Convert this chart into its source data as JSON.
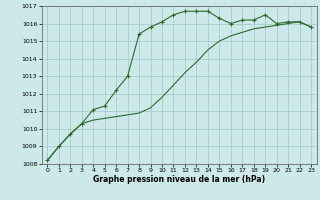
{
  "line1_x": [
    0,
    1,
    2,
    3,
    4,
    5,
    6,
    7,
    8,
    9,
    10,
    11,
    12,
    13,
    14,
    15,
    16,
    17,
    18,
    19,
    20,
    21,
    22,
    23
  ],
  "line1_y": [
    1008.2,
    1009.0,
    1009.7,
    1010.3,
    1011.1,
    1011.3,
    1012.2,
    1013.0,
    1015.4,
    1015.8,
    1016.1,
    1016.5,
    1016.7,
    1016.7,
    1016.7,
    1016.3,
    1016.0,
    1016.2,
    1016.2,
    1016.5,
    1016.0,
    1016.1,
    1016.1,
    1015.8
  ],
  "line2_x": [
    0,
    1,
    2,
    3,
    4,
    5,
    6,
    7,
    8,
    9,
    10,
    11,
    12,
    13,
    14,
    15,
    16,
    17,
    18,
    19,
    20,
    21,
    22,
    23
  ],
  "line2_y": [
    1008.2,
    1009.0,
    1009.7,
    1010.3,
    1010.5,
    1010.6,
    1010.7,
    1010.8,
    1010.9,
    1011.2,
    1011.8,
    1012.5,
    1013.2,
    1013.8,
    1014.5,
    1015.0,
    1015.3,
    1015.5,
    1015.7,
    1015.8,
    1015.9,
    1016.0,
    1016.1,
    1015.8
  ],
  "line_color": "#2d6a2d",
  "bg_color": "#cce8e8",
  "grid_color": "#a0c8c8",
  "ylim": [
    1008,
    1017
  ],
  "xlim": [
    -0.5,
    23.5
  ],
  "yticks": [
    1008,
    1009,
    1010,
    1011,
    1012,
    1013,
    1014,
    1015,
    1016,
    1017
  ],
  "xticks": [
    0,
    1,
    2,
    3,
    4,
    5,
    6,
    7,
    8,
    9,
    10,
    11,
    12,
    13,
    14,
    15,
    16,
    17,
    18,
    19,
    20,
    21,
    22,
    23
  ],
  "xlabel": "Graphe pression niveau de la mer (hPa)",
  "marker": "+",
  "tick_fontsize": 4.5,
  "xlabel_fontsize": 5.5
}
